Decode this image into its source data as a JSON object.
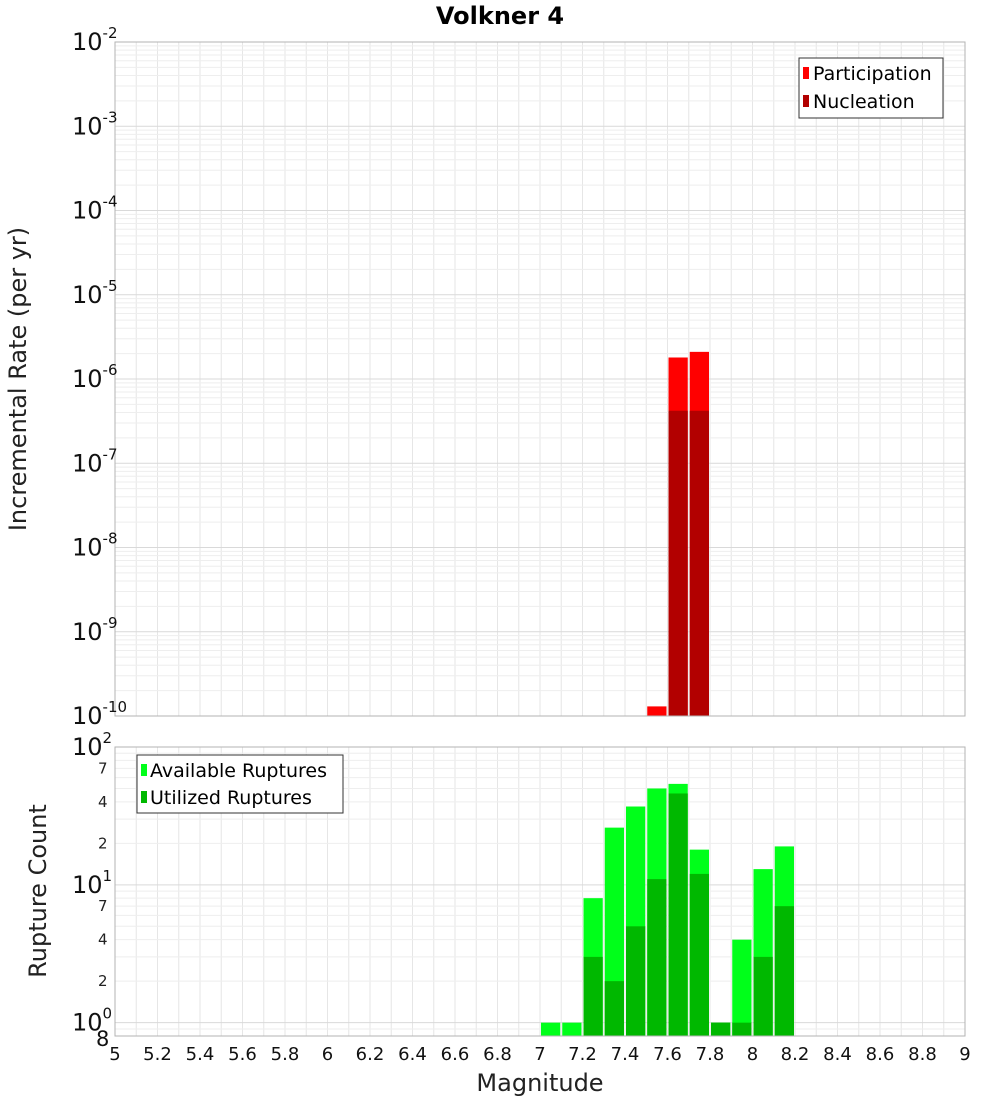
{
  "chart_data": [
    {
      "type": "bar",
      "title": "Volkner 4",
      "ylabel": "Incremental Rate (per yr)",
      "xlabel": "",
      "xlim": [
        5,
        9
      ],
      "ylim": [
        1e-10,
        0.01
      ],
      "yscale": "log",
      "bar_width": 0.1,
      "grid": true,
      "legend_position": "top-right",
      "y_tick_labels": [
        {
          "value": 0.01,
          "base": "10",
          "exp": "-2"
        },
        {
          "value": 0.001,
          "base": "10",
          "exp": "-3"
        },
        {
          "value": 0.0001,
          "base": "10",
          "exp": "-4"
        },
        {
          "value": 1e-05,
          "base": "10",
          "exp": "-5"
        },
        {
          "value": 1e-06,
          "base": "10",
          "exp": "-6"
        },
        {
          "value": 1e-07,
          "base": "10",
          "exp": "-7"
        },
        {
          "value": 1e-08,
          "base": "10",
          "exp": "-8"
        },
        {
          "value": 1e-09,
          "base": "10",
          "exp": "-9"
        },
        {
          "value": 1e-10,
          "base": "10",
          "exp": "-10"
        }
      ],
      "series": [
        {
          "name": "Participation",
          "color": "#ff0000",
          "x": [
            7.55,
            7.65,
            7.75
          ],
          "values": [
            1.3e-10,
            1.8e-06,
            2.1e-06
          ]
        },
        {
          "name": "Nucleation",
          "color": "#b20000",
          "x": [
            7.65,
            7.75
          ],
          "values": [
            4.2e-07,
            4.2e-07
          ]
        }
      ]
    },
    {
      "type": "bar",
      "title": "",
      "ylabel": "Rupture Count",
      "xlabel": "Magnitude",
      "xlim": [
        5,
        9
      ],
      "ylim": [
        0.8,
        100
      ],
      "yscale": "log",
      "bar_width": 0.1,
      "grid": true,
      "legend_position": "top-left",
      "x_tick_labels": [
        "5",
        "5.2",
        "5.4",
        "5.6",
        "5.8",
        "6",
        "6.2",
        "6.4",
        "6.6",
        "6.8",
        "7",
        "7.2",
        "7.4",
        "7.6",
        "7.8",
        "8",
        "8.2",
        "8.4",
        "8.6",
        "8.8",
        "9"
      ],
      "y_tick_labels": [
        {
          "value": 100,
          "base": "10",
          "exp": "2"
        },
        {
          "value": 70,
          "base": "7",
          "exp": ""
        },
        {
          "value": 40,
          "base": "4",
          "exp": ""
        },
        {
          "value": 20,
          "base": "2",
          "exp": ""
        },
        {
          "value": 10,
          "base": "10",
          "exp": "1"
        },
        {
          "value": 7,
          "base": "7",
          "exp": ""
        },
        {
          "value": 4,
          "base": "4",
          "exp": ""
        },
        {
          "value": 2,
          "base": "2",
          "exp": ""
        },
        {
          "value": 1,
          "base": "10",
          "exp": "0"
        },
        {
          "value": 0.8,
          "base": "8",
          "exp": ""
        }
      ],
      "series": [
        {
          "name": "Available Ruptures",
          "color": "#00ff1a",
          "x": [
            7.05,
            7.15,
            7.25,
            7.35,
            7.45,
            7.55,
            7.65,
            7.75,
            7.85,
            7.95,
            8.05,
            8.15
          ],
          "values": [
            1,
            1,
            8,
            26,
            37,
            50,
            54,
            18,
            1,
            4,
            13,
            19
          ]
        },
        {
          "name": "Utilized Ruptures",
          "color": "#00b800",
          "x": [
            7.25,
            7.35,
            7.45,
            7.55,
            7.65,
            7.75,
            7.85,
            7.95,
            8.05,
            8.15
          ],
          "values": [
            3,
            2,
            5,
            11,
            46,
            12,
            1,
            1,
            3,
            7
          ]
        }
      ]
    }
  ]
}
